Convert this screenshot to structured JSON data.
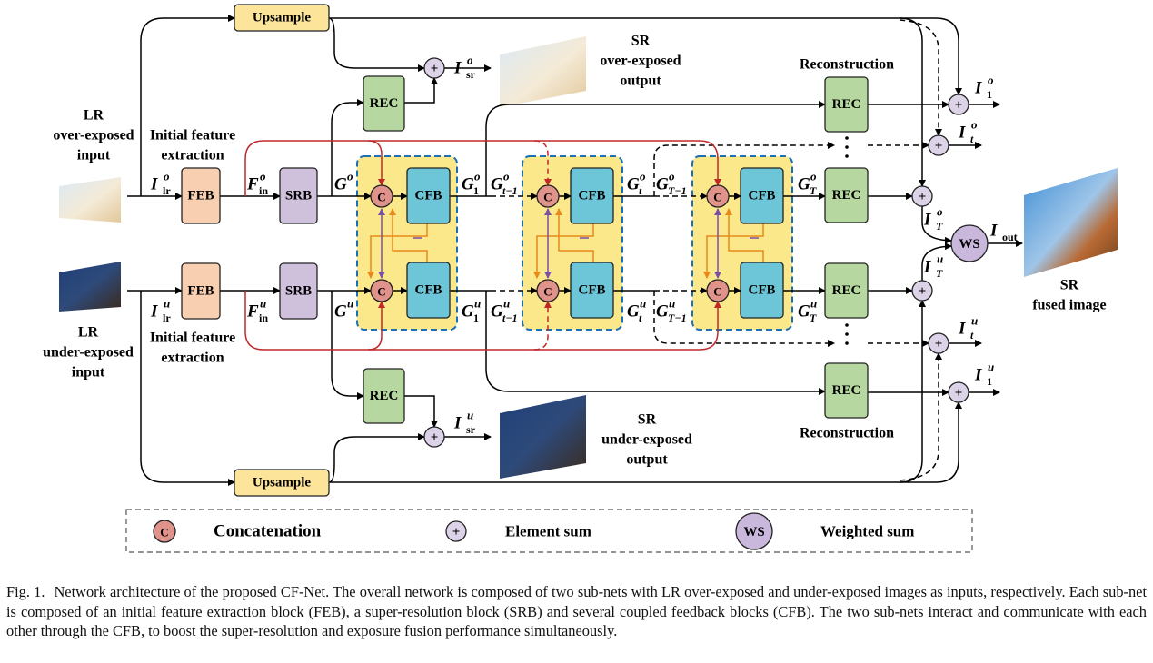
{
  "upsample": [
    "Upsample",
    "Upsample"
  ],
  "inputs": [
    [
      "LR",
      "over-exposed",
      "input"
    ],
    [
      "LR",
      "under-exposed",
      "input"
    ]
  ],
  "feature_extraction": [
    [
      "Initial feature",
      "extraction"
    ],
    [
      "Initial feature",
      "extraction"
    ]
  ],
  "blocks": {
    "feb": "FEB",
    "srb": "SRB",
    "cfb": "CFB",
    "rec": "REC"
  },
  "reconstruction": [
    "Reconstruction",
    "Reconstruction"
  ],
  "outputs": {
    "sr_over": [
      "SR",
      "over-exposed",
      "output"
    ],
    "sr_under": [
      "SR",
      "under-exposed",
      "output"
    ],
    "fused": [
      "SR",
      "fused image"
    ]
  },
  "symbols": {
    "concat": "C",
    "sum": "+",
    "ws": "WS"
  },
  "signals": [
    {
      "base": "I",
      "sup": "o",
      "sub": "sr"
    },
    {
      "base": "I",
      "sup": "o",
      "sub": "1"
    },
    {
      "base": "I",
      "sup": "o",
      "sub": "t"
    },
    {
      "base": "I",
      "sup": "o",
      "sub": "T"
    },
    {
      "base": "I",
      "sub": "out"
    },
    {
      "base": "I",
      "sup": "u",
      "sub": "T"
    },
    {
      "base": "I",
      "sup": "u",
      "sub": "t"
    },
    {
      "base": "I",
      "sup": "u",
      "sub": "1"
    },
    {
      "base": "I",
      "sup": "u",
      "sub": "sr"
    },
    {
      "base": "I",
      "sup": "o",
      "sub": "lr"
    },
    {
      "base": "F",
      "sup": "o",
      "sub": "in"
    },
    {
      "base": "G",
      "sup": "o"
    },
    {
      "base": "G",
      "sup": "o",
      "sub": "1"
    },
    {
      "base": "G",
      "sup": "o",
      "sub": "t−1"
    },
    {
      "base": "G",
      "sup": "o",
      "sub": "t"
    },
    {
      "base": "G",
      "sup": "o",
      "sub": "T−1"
    },
    {
      "base": "G",
      "sup": "o",
      "sub": "T"
    },
    {
      "base": "I",
      "sup": "u",
      "sub": "lr"
    },
    {
      "base": "F",
      "sup": "u",
      "sub": "in"
    },
    {
      "base": "G",
      "sup": "u"
    },
    {
      "base": "G",
      "sup": "u",
      "sub": "1"
    },
    {
      "base": "G",
      "sup": "u",
      "sub": "t−1"
    },
    {
      "base": "G",
      "sup": "u",
      "sub": "t"
    },
    {
      "base": "G",
      "sup": "u",
      "sub": "T−1"
    },
    {
      "base": "G",
      "sup": "u",
      "sub": "T"
    }
  ],
  "legend": {
    "concat": "Concatenation",
    "sum": "Element sum",
    "ws": "Weighted sum"
  },
  "caption": {
    "label": "Fig. 1.",
    "text": "Network architecture of the proposed CF-Net. The overall network is composed of two sub-nets with LR over-exposed and under-exposed images as inputs, respectively. Each sub-net is composed of an initial feature extraction block (FEB), a super-resolution block (SRB) and several coupled feedback blocks (CFB). The two sub-nets interact and communicate with each other through the CFB, to boost the super-resolution and exposure fusion performance simultaneously."
  }
}
